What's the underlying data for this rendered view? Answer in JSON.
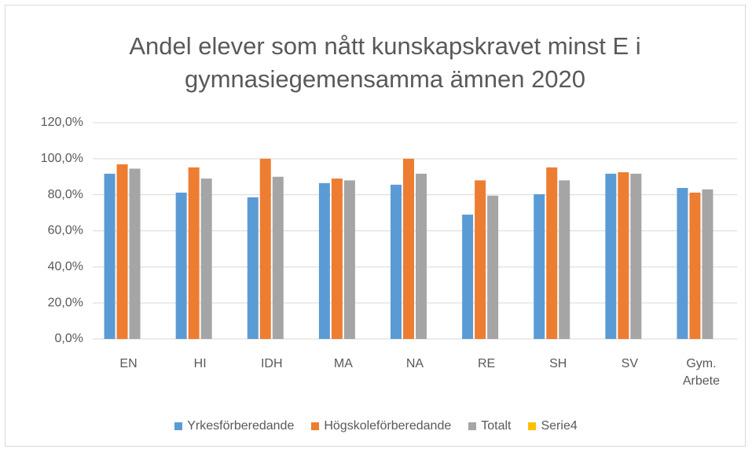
{
  "chart_data": {
    "type": "bar",
    "title": "Andel elever som nått kunskapskravet minst E i gymnasiegemensamma ämnen 2020",
    "categories": [
      "EN",
      "HI",
      "IDH",
      "MA",
      "NA",
      "RE",
      "SH",
      "SV",
      "Gym. Arbete"
    ],
    "series": [
      {
        "name": "Yrkesförberedande",
        "color": "#5b9bd5",
        "values": [
          91.7,
          81.2,
          78.6,
          86.5,
          85.6,
          69,
          80.3,
          91.7,
          83.8
        ]
      },
      {
        "name": "Högskoleförberedande",
        "color": "#ed7d31",
        "values": [
          96.9,
          95.2,
          100,
          89,
          100,
          88,
          95.2,
          92.5,
          81.2
        ]
      },
      {
        "name": "Totalt",
        "color": "#a5a5a5",
        "values": [
          94.5,
          89,
          90,
          88,
          91.7,
          79.5,
          88,
          91.7,
          83
        ]
      },
      {
        "name": "Serie4",
        "color": "#ffc000",
        "values": [
          null,
          null,
          null,
          null,
          null,
          null,
          null,
          null,
          null
        ]
      }
    ],
    "ylim": [
      0,
      120
    ],
    "yticks": [
      {
        "value": 0,
        "label": "0,0%"
      },
      {
        "value": 20,
        "label": "20,0%"
      },
      {
        "value": 40,
        "label": "40,0%"
      },
      {
        "value": 60,
        "label": "60,0%"
      },
      {
        "value": 80,
        "label": "80,0%"
      },
      {
        "value": 100,
        "label": "100,0%"
      },
      {
        "value": 120,
        "label": "120,0%"
      }
    ],
    "grid": true,
    "legend": "bottom"
  }
}
